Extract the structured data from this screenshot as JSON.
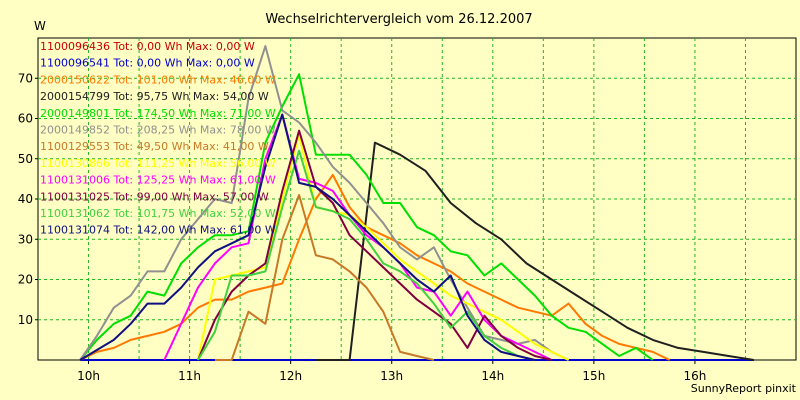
{
  "chart_data": {
    "type": "line",
    "title": "Wechselrichtervergleich vom 26.12.2007",
    "ylabel": "W",
    "footer": "SunnyReport pinxit",
    "x_ticks": [
      "10h",
      "11h",
      "12h",
      "13h",
      "14h",
      "15h",
      "16h"
    ],
    "y_ticks": [
      "10",
      "20",
      "30",
      "40",
      "50",
      "60",
      "70"
    ],
    "xlim": [
      9.5,
      17.0
    ],
    "ylim": [
      0,
      80
    ],
    "grid": true,
    "legend_position": "top-left",
    "colors": {
      "background": "#FFFFC4",
      "grid": "#22B622"
    },
    "series": [
      {
        "name": "1100096436 Tot: 0,00 Wh Max: 0,00 W",
        "color": "#C80000",
        "points": [
          [
            9.917,
            0
          ],
          [
            16.583,
            0
          ]
        ]
      },
      {
        "name": "1100096541 Tot: 0,00 Wh Max: 0,00 W",
        "color": "#0000CC",
        "points": [
          [
            9.917,
            0
          ],
          [
            16.583,
            0
          ]
        ]
      },
      {
        "name": "2000150622 Tot: 101,00 Wh Max: 46,00 W",
        "color": "#FF7800",
        "points": [
          [
            9.917,
            0
          ],
          [
            10.083,
            2
          ],
          [
            10.25,
            3
          ],
          [
            10.417,
            5
          ],
          [
            10.583,
            6
          ],
          [
            10.75,
            7
          ],
          [
            10.917,
            9
          ],
          [
            11.083,
            13
          ],
          [
            11.25,
            15
          ],
          [
            11.417,
            15
          ],
          [
            11.583,
            17
          ],
          [
            11.75,
            18
          ],
          [
            11.917,
            19
          ],
          [
            12.083,
            30
          ],
          [
            12.25,
            40
          ],
          [
            12.417,
            46
          ],
          [
            12.583,
            38
          ],
          [
            12.75,
            33
          ],
          [
            12.917,
            31
          ],
          [
            13.083,
            29
          ],
          [
            13.25,
            26
          ],
          [
            13.417,
            24
          ],
          [
            13.583,
            22
          ],
          [
            13.75,
            19
          ],
          [
            13.917,
            17
          ],
          [
            14.083,
            15
          ],
          [
            14.25,
            13
          ],
          [
            14.417,
            12
          ],
          [
            14.583,
            11
          ],
          [
            14.75,
            14
          ],
          [
            14.917,
            9
          ],
          [
            15.083,
            6
          ],
          [
            15.25,
            4
          ],
          [
            15.417,
            3
          ],
          [
            15.583,
            2
          ],
          [
            15.75,
            0
          ]
        ]
      },
      {
        "name": "2000154799 Tot: 95,75 Wh Max: 54,00 W",
        "color": "#202020",
        "points": [
          [
            12.25,
            0
          ],
          [
            12.583,
            0
          ],
          [
            12.833,
            54
          ],
          [
            13.083,
            51
          ],
          [
            13.333,
            47
          ],
          [
            13.583,
            39
          ],
          [
            13.833,
            34
          ],
          [
            14.083,
            30
          ],
          [
            14.333,
            24
          ],
          [
            14.583,
            20
          ],
          [
            14.833,
            16
          ],
          [
            15.083,
            12
          ],
          [
            15.333,
            8
          ],
          [
            15.583,
            5
          ],
          [
            15.833,
            3
          ],
          [
            16.083,
            2
          ],
          [
            16.333,
            1
          ],
          [
            16.583,
            0
          ]
        ]
      },
      {
        "name": "2000149801 Tot: 174,50 Wh Max: 71,00 W",
        "color": "#00E000",
        "points": [
          [
            9.917,
            0
          ],
          [
            10.083,
            5
          ],
          [
            10.25,
            9
          ],
          [
            10.417,
            11
          ],
          [
            10.583,
            17
          ],
          [
            10.75,
            16
          ],
          [
            10.917,
            24
          ],
          [
            11.083,
            28
          ],
          [
            11.25,
            31
          ],
          [
            11.417,
            31
          ],
          [
            11.583,
            32
          ],
          [
            11.75,
            54
          ],
          [
            11.917,
            63
          ],
          [
            12.083,
            71
          ],
          [
            12.25,
            51
          ],
          [
            12.417,
            51
          ],
          [
            12.583,
            51
          ],
          [
            12.75,
            46
          ],
          [
            12.917,
            39
          ],
          [
            13.083,
            39
          ],
          [
            13.25,
            33
          ],
          [
            13.417,
            31
          ],
          [
            13.583,
            27
          ],
          [
            13.75,
            26
          ],
          [
            13.917,
            21
          ],
          [
            14.083,
            24
          ],
          [
            14.25,
            20
          ],
          [
            14.417,
            16
          ],
          [
            14.583,
            11
          ],
          [
            14.75,
            8
          ],
          [
            14.917,
            7
          ],
          [
            15.083,
            4
          ],
          [
            15.25,
            1
          ],
          [
            15.417,
            3
          ],
          [
            15.583,
            0
          ]
        ]
      },
      {
        "name": "2000149852 Tot: 208,25 Wh Max: 78,00 W",
        "color": "#909090",
        "points": [
          [
            9.917,
            0
          ],
          [
            10.083,
            6
          ],
          [
            10.25,
            13
          ],
          [
            10.417,
            16
          ],
          [
            10.583,
            22
          ],
          [
            10.75,
            22
          ],
          [
            10.917,
            30
          ],
          [
            11.083,
            35
          ],
          [
            11.25,
            40
          ],
          [
            11.417,
            39
          ],
          [
            11.583,
            65
          ],
          [
            11.75,
            78
          ],
          [
            11.917,
            62
          ],
          [
            12.083,
            59
          ],
          [
            12.25,
            54
          ],
          [
            12.417,
            48
          ],
          [
            12.583,
            44
          ],
          [
            12.75,
            39
          ],
          [
            12.917,
            34
          ],
          [
            13.083,
            28
          ],
          [
            13.25,
            25
          ],
          [
            13.417,
            28
          ],
          [
            13.583,
            20
          ],
          [
            13.75,
            13
          ],
          [
            13.917,
            6
          ],
          [
            14.083,
            5
          ],
          [
            14.25,
            4
          ],
          [
            14.417,
            5
          ],
          [
            14.583,
            2
          ],
          [
            14.75,
            0
          ]
        ]
      },
      {
        "name": "1100129553 Tot: 49,50 Wh Max: 41,00 W",
        "color": "#C87828",
        "points": [
          [
            11.25,
            0
          ],
          [
            11.417,
            0
          ],
          [
            11.583,
            12
          ],
          [
            11.75,
            9
          ],
          [
            11.917,
            30
          ],
          [
            12.083,
            41
          ],
          [
            12.25,
            26
          ],
          [
            12.417,
            25
          ],
          [
            12.583,
            22
          ],
          [
            12.75,
            18
          ],
          [
            12.917,
            12
          ],
          [
            13.083,
            2
          ],
          [
            13.25,
            1
          ],
          [
            13.417,
            0
          ]
        ]
      },
      {
        "name": "1100130866 Tot: 111,25 Wh Max: 56,00 W",
        "color": "#FFFF00",
        "points": [
          [
            11.083,
            0
          ],
          [
            11.25,
            20
          ],
          [
            11.417,
            21
          ],
          [
            11.583,
            22
          ],
          [
            11.75,
            23
          ],
          [
            11.917,
            40
          ],
          [
            12.083,
            56
          ],
          [
            12.25,
            38
          ],
          [
            12.417,
            37
          ],
          [
            12.583,
            36
          ],
          [
            12.75,
            33
          ],
          [
            12.917,
            29
          ],
          [
            13.083,
            25
          ],
          [
            13.25,
            22
          ],
          [
            13.417,
            19
          ],
          [
            13.583,
            16
          ],
          [
            13.75,
            14
          ],
          [
            13.917,
            12
          ],
          [
            14.083,
            10
          ],
          [
            14.25,
            7
          ],
          [
            14.417,
            4
          ],
          [
            14.583,
            2
          ],
          [
            14.75,
            0
          ]
        ]
      },
      {
        "name": "1100131006 Tot: 125,25 Wh Max: 61,00 W",
        "color": "#FF00FF",
        "points": [
          [
            10.75,
            0
          ],
          [
            11.083,
            18
          ],
          [
            11.25,
            24
          ],
          [
            11.417,
            28
          ],
          [
            11.583,
            29
          ],
          [
            11.75,
            50
          ],
          [
            11.917,
            61
          ],
          [
            12.083,
            45
          ],
          [
            12.25,
            44
          ],
          [
            12.417,
            42
          ],
          [
            12.583,
            36
          ],
          [
            12.75,
            31
          ],
          [
            12.917,
            28
          ],
          [
            13.083,
            24
          ],
          [
            13.25,
            18
          ],
          [
            13.417,
            17
          ],
          [
            13.583,
            11
          ],
          [
            13.75,
            17
          ],
          [
            13.917,
            10
          ],
          [
            14.083,
            6
          ],
          [
            14.25,
            4
          ],
          [
            14.417,
            2
          ],
          [
            14.583,
            0
          ]
        ]
      },
      {
        "name": "1100131025 Tot: 99,00 Wh Max: 57,00 W",
        "color": "#800040",
        "points": [
          [
            11.083,
            0
          ],
          [
            11.25,
            10
          ],
          [
            11.417,
            17
          ],
          [
            11.583,
            21
          ],
          [
            11.75,
            24
          ],
          [
            11.917,
            42
          ],
          [
            12.083,
            57
          ],
          [
            12.25,
            43
          ],
          [
            12.417,
            39
          ],
          [
            12.583,
            31
          ],
          [
            12.75,
            27
          ],
          [
            12.917,
            23
          ],
          [
            13.083,
            19
          ],
          [
            13.25,
            15
          ],
          [
            13.417,
            12
          ],
          [
            13.583,
            9
          ],
          [
            13.75,
            3
          ],
          [
            13.917,
            11
          ],
          [
            14.083,
            6
          ],
          [
            14.25,
            3
          ],
          [
            14.417,
            1
          ],
          [
            14.583,
            0
          ]
        ]
      },
      {
        "name": "1100131062 Tot: 101,75 Wh Max: 52,00 W",
        "color": "#40D040",
        "points": [
          [
            11.083,
            0
          ],
          [
            11.25,
            7
          ],
          [
            11.417,
            21
          ],
          [
            11.583,
            21
          ],
          [
            11.75,
            22
          ],
          [
            11.917,
            38
          ],
          [
            12.083,
            52
          ],
          [
            12.25,
            38
          ],
          [
            12.417,
            37
          ],
          [
            12.583,
            35
          ],
          [
            12.75,
            30
          ],
          [
            12.917,
            24
          ],
          [
            13.083,
            22
          ],
          [
            13.25,
            19
          ],
          [
            13.417,
            14
          ],
          [
            13.583,
            8
          ],
          [
            13.75,
            12
          ],
          [
            13.917,
            6
          ],
          [
            14.083,
            3
          ],
          [
            14.25,
            1
          ],
          [
            14.417,
            0
          ]
        ]
      },
      {
        "name": "1100131074 Tot: 142,00 Wh Max: 61,00 W",
        "color": "#101080",
        "points": [
          [
            9.917,
            0
          ],
          [
            10.25,
            5
          ],
          [
            10.417,
            9
          ],
          [
            10.583,
            14
          ],
          [
            10.75,
            14
          ],
          [
            10.917,
            18
          ],
          [
            11.083,
            23
          ],
          [
            11.25,
            27
          ],
          [
            11.417,
            29
          ],
          [
            11.583,
            31
          ],
          [
            11.75,
            48
          ],
          [
            11.917,
            61
          ],
          [
            12.083,
            44
          ],
          [
            12.25,
            43
          ],
          [
            12.417,
            40
          ],
          [
            12.583,
            36
          ],
          [
            12.75,
            32
          ],
          [
            12.917,
            28
          ],
          [
            13.083,
            24
          ],
          [
            13.25,
            20
          ],
          [
            13.417,
            17
          ],
          [
            13.583,
            21
          ],
          [
            13.75,
            11
          ],
          [
            13.917,
            5
          ],
          [
            14.083,
            2
          ],
          [
            14.25,
            1
          ],
          [
            14.417,
            0
          ]
        ]
      }
    ]
  }
}
